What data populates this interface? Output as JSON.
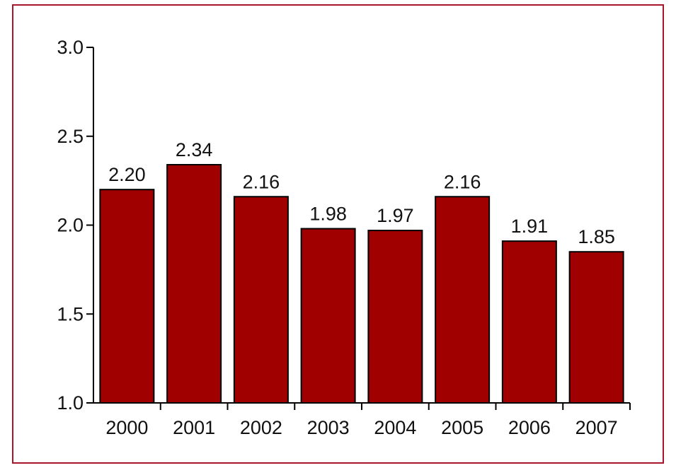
{
  "chart_data": {
    "type": "bar",
    "title": "",
    "xlabel": "",
    "ylabel": "",
    "categories": [
      "2000",
      "2001",
      "2002",
      "2003",
      "2004",
      "2005",
      "2006",
      "2007"
    ],
    "values": [
      2.2,
      2.34,
      2.16,
      1.98,
      1.97,
      2.16,
      1.91,
      1.85
    ],
    "value_labels": [
      "2.20",
      "2.34",
      "2.16",
      "1.98",
      "1.97",
      "2.16",
      "1.91",
      "1.85"
    ],
    "ylim": [
      1.0,
      3.0
    ],
    "yticks": [
      1.0,
      1.5,
      2.0,
      2.5,
      3.0
    ],
    "ytick_labels": [
      "1.0",
      "1.5",
      "2.0",
      "2.5",
      "3.0"
    ],
    "grid": false,
    "legend": "none",
    "colors": {
      "bar": "#a00000",
      "frame": "#a8162b",
      "axis": "#000000"
    }
  }
}
